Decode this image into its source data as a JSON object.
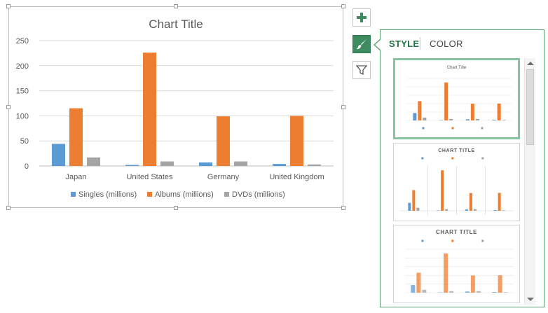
{
  "chart_data": {
    "type": "bar",
    "title": "Chart Title",
    "categories": [
      "Japan",
      "United States",
      "Germany",
      "United Kingdom"
    ],
    "series": [
      {
        "name": "Singles (millions)",
        "color": "#5b9bd5",
        "values": [
          44,
          2,
          7,
          4
        ]
      },
      {
        "name": "Albums (millions)",
        "color": "#ed7d31",
        "values": [
          115,
          226,
          99,
          100
        ]
      },
      {
        "name": "DVDs (millions)",
        "color": "#a5a5a5",
        "values": [
          17,
          9,
          9,
          3
        ]
      }
    ],
    "ylim": [
      0,
      250
    ],
    "yticks": [
      "0",
      "50",
      "100",
      "150",
      "200",
      "250"
    ],
    "grid": true,
    "legend": "bottom"
  },
  "toolbar": {
    "add_element_icon": "plus-icon",
    "styles_icon": "paintbrush-icon",
    "filter_icon": "funnel-icon"
  },
  "pane": {
    "tabs": [
      {
        "label": "STYLE",
        "active": true
      },
      {
        "label": "COLOR",
        "active": false
      }
    ],
    "thumbnails": [
      {
        "title": "Chart Title",
        "selected": true
      },
      {
        "title": "CHART TITLE",
        "selected": false
      },
      {
        "title": "CHART TITLE",
        "selected": false
      }
    ]
  }
}
